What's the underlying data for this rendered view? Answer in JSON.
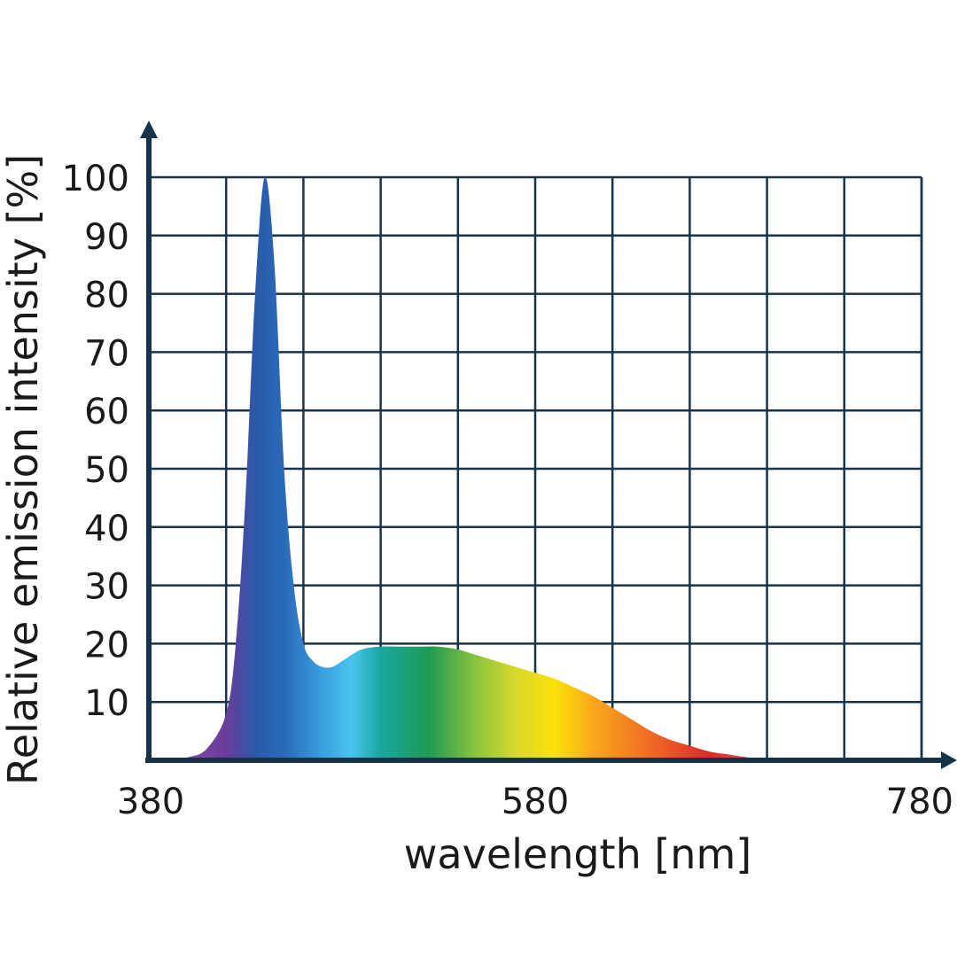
{
  "chart_data": {
    "type": "area",
    "title": "",
    "xlabel": "wavelength [nm]",
    "ylabel": "Relative emission intensity [%]",
    "xlim": [
      380,
      780
    ],
    "ylim": [
      0,
      100
    ],
    "x_tick_labels": [
      "380",
      "580",
      "780"
    ],
    "y_tick_labels": [
      "10",
      "20",
      "30",
      "40",
      "50",
      "60",
      "70",
      "80",
      "90",
      "100"
    ],
    "grid": true,
    "legend": "none",
    "series": [
      {
        "x": [
          390,
          400,
          410,
          420,
          425,
          430,
          435,
          440,
          445,
          450,
          455,
          460,
          465,
          470,
          475,
          480,
          490,
          500,
          510,
          520,
          530,
          540,
          550,
          560,
          570,
          580,
          590,
          600,
          610,
          620,
          630,
          640,
          650,
          660,
          670,
          680,
          690,
          700,
          710,
          720
        ],
        "values": [
          0,
          0.5,
          2,
          8,
          20,
          45,
          80,
          100,
          85,
          50,
          30,
          20,
          17,
          16,
          16,
          17,
          19,
          19.5,
          19.5,
          19.5,
          19.5,
          19,
          18,
          17,
          16,
          15,
          14,
          12.5,
          11,
          9,
          7,
          5,
          3.5,
          2.5,
          1.5,
          1,
          0.5,
          0.2,
          0.1,
          0
        ]
      }
    ]
  },
  "colors": {
    "axis": "#17334a",
    "grid": "#17334a",
    "spectrum_stops": [
      {
        "nm": 390,
        "color": "#8a4fa6"
      },
      {
        "nm": 420,
        "color": "#6a3c9a"
      },
      {
        "nm": 435,
        "color": "#2a5aa8"
      },
      {
        "nm": 450,
        "color": "#2a6ab8"
      },
      {
        "nm": 470,
        "color": "#3aa0de"
      },
      {
        "nm": 485,
        "color": "#4ac4ee"
      },
      {
        "nm": 500,
        "color": "#19a7a0"
      },
      {
        "nm": 525,
        "color": "#1f9a52"
      },
      {
        "nm": 550,
        "color": "#8cc63e"
      },
      {
        "nm": 570,
        "color": "#d8d92a"
      },
      {
        "nm": 590,
        "color": "#fde10a"
      },
      {
        "nm": 610,
        "color": "#f9a81a"
      },
      {
        "nm": 640,
        "color": "#ef6a26"
      },
      {
        "nm": 670,
        "color": "#e02a27"
      },
      {
        "nm": 720,
        "color": "#e67a7a"
      }
    ]
  }
}
